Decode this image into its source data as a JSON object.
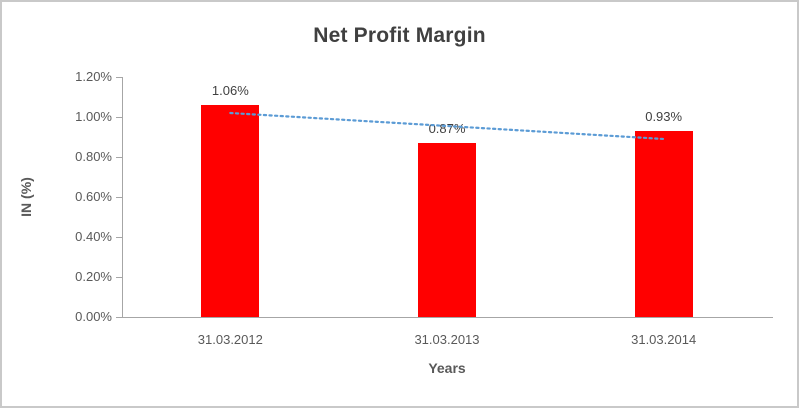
{
  "chart_data": {
    "type": "bar",
    "title": "Net Profit Margin",
    "categories": [
      "31.03.2012",
      "31.03.2013",
      "31.03.2014"
    ],
    "values": [
      1.06,
      0.87,
      0.93
    ],
    "data_labels": [
      "1.06%",
      "0.87%",
      "0.93%"
    ],
    "xlabel": "Years",
    "ylabel": "IN (%)",
    "ylim": [
      0,
      1.2
    ],
    "yticks": [
      "0.00%",
      "0.20%",
      "0.40%",
      "0.60%",
      "0.80%",
      "1.00%",
      "1.20%"
    ],
    "bar_color": "#FF0000",
    "trendline": {
      "style": "dotted",
      "color": "#5B9BD5",
      "start": 1.02,
      "end": 0.89
    },
    "grid": false,
    "legend": false
  }
}
